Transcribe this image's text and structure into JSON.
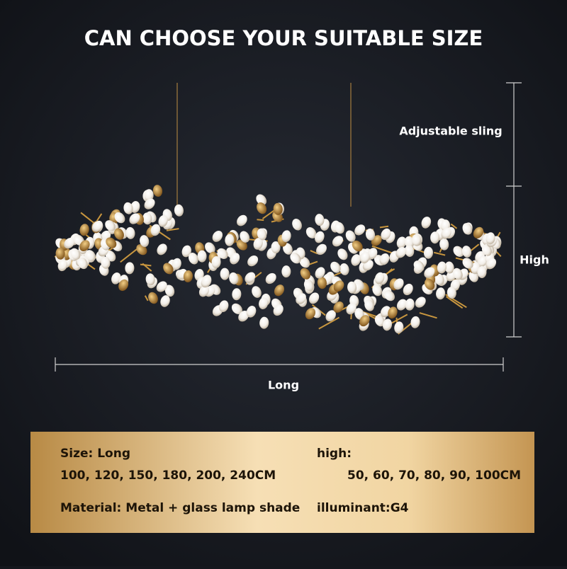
{
  "title": "CAN CHOOSE YOUR SUITABLE SIZE",
  "dimensions": {
    "sling": "Adjustable sling",
    "high": "High",
    "long": "Long"
  },
  "specs": {
    "size_label": "Size: Long",
    "size_values": "100, 120, 150, 180, 200, 240CM",
    "high_label": "high:",
    "high_values": "50, 60, 70, 80, 90, 100CM",
    "material": "Material: Metal + glass lamp shade",
    "illuminant": "illuminant:G4"
  }
}
